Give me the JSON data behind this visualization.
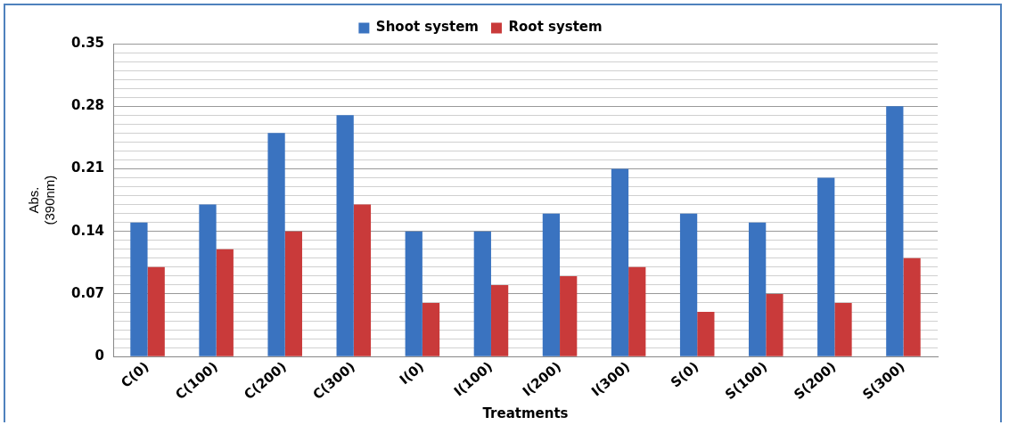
{
  "chart_data": {
    "type": "bar",
    "xlabel": "Treatments",
    "ylabel": "Abs.\n(390nm)",
    "categories": [
      "C(0)",
      "C(100)",
      "C(200)",
      "C(300)",
      "I(0)",
      "I(100)",
      "I(200)",
      "I(300)",
      "S(0)",
      "S(100)",
      "S(200)",
      "S(300)"
    ],
    "series": [
      {
        "name": "Shoot system",
        "color": "#3a73c0",
        "values": [
          0.15,
          0.17,
          0.25,
          0.27,
          0.14,
          0.14,
          0.16,
          0.21,
          0.16,
          0.15,
          0.2,
          0.28
        ]
      },
      {
        "name": "Root system",
        "color": "#c93a3a",
        "values": [
          0.1,
          0.12,
          0.14,
          0.17,
          0.06,
          0.08,
          0.09,
          0.1,
          0.05,
          0.07,
          0.06,
          0.11
        ]
      }
    ],
    "ylim": [
      0,
      0.35
    ],
    "yticks": [
      0,
      {
        "value": 0.01,
        "label": null
      },
      {
        "value": 0.02,
        "label": null
      },
      {
        "value": 0.03,
        "label": null
      },
      {
        "value": 0.04,
        "label": null
      },
      {
        "value": 0.05,
        "label": null
      },
      {
        "value": 0.06,
        "label": null
      },
      0.07,
      {
        "value": 0.08,
        "label": null
      },
      {
        "value": 0.09,
        "label": null
      },
      {
        "value": 0.1,
        "label": null
      },
      {
        "value": 0.11,
        "label": null
      },
      {
        "value": 0.12,
        "label": null
      },
      {
        "value": 0.13,
        "label": null
      },
      0.14,
      {
        "value": 0.15,
        "label": null
      },
      {
        "value": 0.16,
        "label": null
      },
      {
        "value": 0.17,
        "label": null
      },
      {
        "value": 0.18,
        "label": null
      },
      {
        "value": 0.19,
        "label": null
      },
      {
        "value": 0.2,
        "label": null
      },
      0.21,
      {
        "value": 0.22,
        "label": null
      },
      {
        "value": 0.23,
        "label": null
      },
      {
        "value": 0.24,
        "label": null
      },
      {
        "value": 0.25,
        "label": null
      },
      {
        "value": 0.26,
        "label": null
      },
      {
        "value": 0.27,
        "label": null
      },
      0.28,
      {
        "value": 0.29,
        "label": null
      },
      {
        "value": 0.3,
        "label": null
      },
      {
        "value": 0.31,
        "label": null
      },
      {
        "value": 0.32,
        "label": null
      },
      {
        "value": 0.33,
        "label": null
      },
      {
        "value": 0.34,
        "label": null
      },
      0.35
    ],
    "grid": "y",
    "legend": "top"
  }
}
